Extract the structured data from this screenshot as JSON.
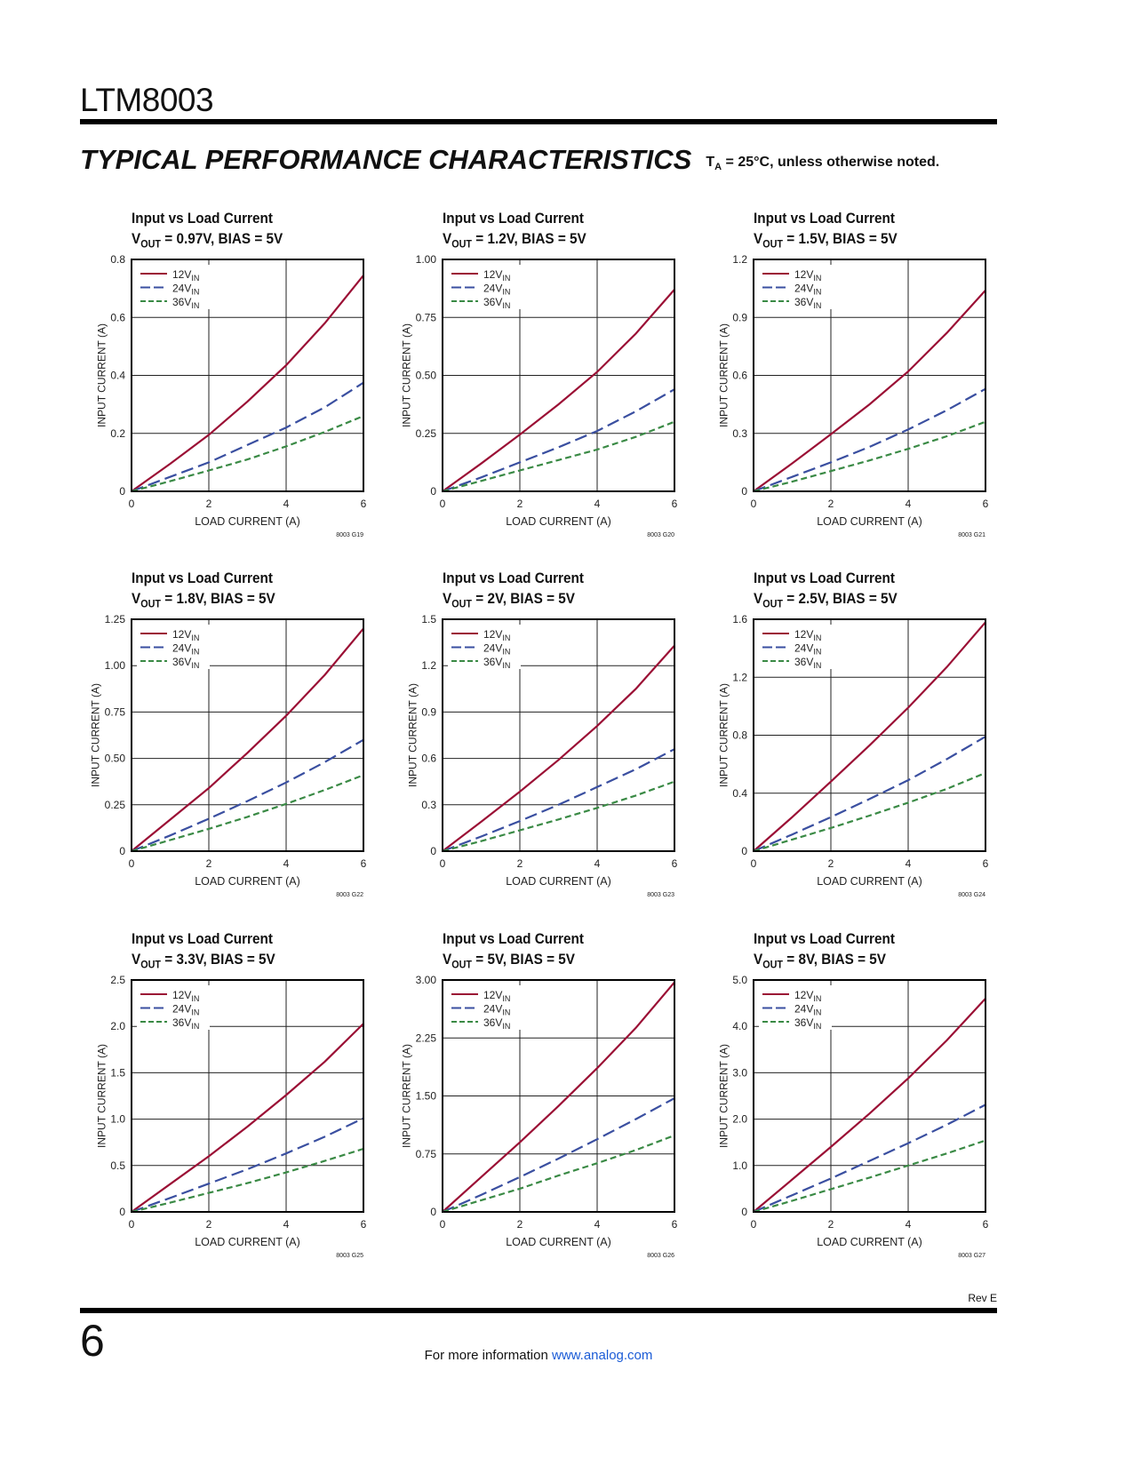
{
  "header": {
    "part_number": "LTM8003",
    "section_title": "TYPICAL PERFORMANCE CHARACTERISTICS",
    "conditions_prefix": "T",
    "conditions_sub": "A",
    "conditions_text": " = 25°C, unless otherwise noted."
  },
  "footer": {
    "page_number": "6",
    "revision": "Rev E",
    "info_text": "For more information ",
    "link_text": "www.analog.com"
  },
  "colors": {
    "12VIN": "#9b1035",
    "24VIN": "#3a4fa0",
    "36VIN": "#3a8a45"
  },
  "chart_data": [
    {
      "type": "line",
      "title": "Input vs Load Current",
      "subtitle_pre": "V",
      "subtitle_sub": "OUT",
      "subtitle_post": " = 0.97V, BIAS = 5V",
      "xlabel": "LOAD CURRENT (A)",
      "ylabel": "INPUT CURRENT (A)",
      "code": "8003 G19",
      "xlim": [
        0,
        6
      ],
      "ylim": [
        0,
        0.8
      ],
      "xticks": [
        "0",
        "2",
        "4",
        "6"
      ],
      "yticks": [
        "0",
        "0.2",
        "0.4",
        "0.6",
        "0.8"
      ],
      "grid": true,
      "legend": "top-left",
      "x": [
        0,
        1,
        2,
        3,
        4,
        5,
        6
      ],
      "series": [
        {
          "name": "12V",
          "name_sub": "IN",
          "values": [
            0,
            0.095,
            0.195,
            0.31,
            0.435,
            0.58,
            0.745
          ]
        },
        {
          "name": "24V",
          "name_sub": "IN",
          "values": [
            0,
            0.05,
            0.1,
            0.16,
            0.22,
            0.29,
            0.375
          ]
        },
        {
          "name": "36V",
          "name_sub": "IN",
          "values": [
            0,
            0.035,
            0.072,
            0.11,
            0.155,
            0.205,
            0.26
          ]
        }
      ]
    },
    {
      "type": "line",
      "title": "Input vs Load Current",
      "subtitle_pre": "V",
      "subtitle_sub": "OUT",
      "subtitle_post": " = 1.2V, BIAS = 5V",
      "xlabel": "LOAD CURRENT (A)",
      "ylabel": "INPUT CURRENT (A)",
      "code": "8003 G20",
      "xlim": [
        0,
        6
      ],
      "ylim": [
        0,
        1.0
      ],
      "xticks": [
        "0",
        "2",
        "4",
        "6"
      ],
      "yticks": [
        "0",
        "0.25",
        "0.50",
        "0.75",
        "1.00"
      ],
      "grid": true,
      "legend": "top-left",
      "x": [
        0,
        1,
        2,
        3,
        4,
        5,
        6
      ],
      "series": [
        {
          "name": "12V",
          "name_sub": "IN",
          "values": [
            0,
            0.12,
            0.245,
            0.375,
            0.515,
            0.68,
            0.87
          ]
        },
        {
          "name": "24V",
          "name_sub": "IN",
          "values": [
            0,
            0.06,
            0.125,
            0.19,
            0.26,
            0.345,
            0.44
          ]
        },
        {
          "name": "36V",
          "name_sub": "IN",
          "values": [
            0,
            0.045,
            0.09,
            0.135,
            0.18,
            0.235,
            0.3
          ]
        }
      ]
    },
    {
      "type": "line",
      "title": "Input vs Load Current",
      "subtitle_pre": "V",
      "subtitle_sub": "OUT",
      "subtitle_post": " = 1.5V, BIAS = 5V",
      "xlabel": "LOAD CURRENT (A)",
      "ylabel": "INPUT CURRENT (A)",
      "code": "8003 G21",
      "xlim": [
        0,
        6
      ],
      "ylim": [
        0,
        1.2
      ],
      "xticks": [
        "0",
        "2",
        "4",
        "6"
      ],
      "yticks": [
        "0",
        "0.3",
        "0.6",
        "0.9",
        "1.2"
      ],
      "grid": true,
      "legend": "top-left",
      "x": [
        0,
        1,
        2,
        3,
        4,
        5,
        6
      ],
      "series": [
        {
          "name": "12V",
          "name_sub": "IN",
          "values": [
            0,
            0.145,
            0.295,
            0.45,
            0.62,
            0.82,
            1.04
          ]
        },
        {
          "name": "24V",
          "name_sub": "IN",
          "values": [
            0,
            0.075,
            0.15,
            0.23,
            0.32,
            0.42,
            0.53
          ]
        },
        {
          "name": "36V",
          "name_sub": "IN",
          "values": [
            0,
            0.05,
            0.105,
            0.16,
            0.22,
            0.285,
            0.36
          ]
        }
      ]
    },
    {
      "type": "line",
      "title": "Input vs Load Current",
      "subtitle_pre": "V",
      "subtitle_sub": "OUT",
      "subtitle_post": " = 1.8V, BIAS = 5V",
      "xlabel": "LOAD CURRENT (A)",
      "ylabel": "INPUT CURRENT (A)",
      "code": "8003 G22",
      "xlim": [
        0,
        6
      ],
      "ylim": [
        0,
        1.25
      ],
      "xticks": [
        "0",
        "2",
        "4",
        "6"
      ],
      "yticks": [
        "0",
        "0.25",
        "0.50",
        "0.75",
        "1.00",
        "1.25"
      ],
      "grid": true,
      "legend": "top-left",
      "x": [
        0,
        1,
        2,
        3,
        4,
        5,
        6
      ],
      "series": [
        {
          "name": "12V",
          "name_sub": "IN",
          "values": [
            0,
            0.17,
            0.34,
            0.53,
            0.73,
            0.95,
            1.2
          ]
        },
        {
          "name": "24V",
          "name_sub": "IN",
          "values": [
            0,
            0.085,
            0.175,
            0.27,
            0.37,
            0.48,
            0.6
          ]
        },
        {
          "name": "36V",
          "name_sub": "IN",
          "values": [
            0,
            0.06,
            0.12,
            0.185,
            0.255,
            0.33,
            0.41
          ]
        }
      ]
    },
    {
      "type": "line",
      "title": "Input vs Load Current",
      "subtitle_pre": "V",
      "subtitle_sub": "OUT",
      "subtitle_post": " = 2V, BIAS = 5V",
      "xlabel": "LOAD CURRENT (A)",
      "ylabel": "INPUT CURRENT (A)",
      "code": "8003 G23",
      "xlim": [
        0,
        6
      ],
      "ylim": [
        0,
        1.5
      ],
      "xticks": [
        "0",
        "2",
        "4",
        "6"
      ],
      "yticks": [
        "0",
        "0.3",
        "0.6",
        "0.9",
        "1.2",
        "1.5"
      ],
      "grid": true,
      "legend": "top-left",
      "x": [
        0,
        1,
        2,
        3,
        4,
        5,
        6
      ],
      "series": [
        {
          "name": "12V",
          "name_sub": "IN",
          "values": [
            0,
            0.19,
            0.385,
            0.59,
            0.81,
            1.05,
            1.33
          ]
        },
        {
          "name": "24V",
          "name_sub": "IN",
          "values": [
            0,
            0.095,
            0.195,
            0.3,
            0.415,
            0.53,
            0.66
          ]
        },
        {
          "name": "36V",
          "name_sub": "IN",
          "values": [
            0,
            0.065,
            0.135,
            0.205,
            0.28,
            0.36,
            0.45
          ]
        }
      ]
    },
    {
      "type": "line",
      "title": "Input vs Load Current",
      "subtitle_pre": "V",
      "subtitle_sub": "OUT",
      "subtitle_post": " = 2.5V, BIAS = 5V",
      "xlabel": "LOAD CURRENT (A)",
      "ylabel": "INPUT CURRENT (A)",
      "code": "8003 G24",
      "xlim": [
        0,
        6
      ],
      "ylim": [
        0,
        1.6
      ],
      "xticks": [
        "0",
        "2",
        "4",
        "6"
      ],
      "yticks": [
        "0",
        "0.4",
        "0.8",
        "1.2",
        "1.6"
      ],
      "grid": true,
      "legend": "top-left",
      "x": [
        0,
        1,
        2,
        3,
        4,
        5,
        6
      ],
      "series": [
        {
          "name": "12V",
          "name_sub": "IN",
          "values": [
            0,
            0.235,
            0.48,
            0.73,
            0.99,
            1.27,
            1.58
          ]
        },
        {
          "name": "24V",
          "name_sub": "IN",
          "values": [
            0,
            0.115,
            0.235,
            0.36,
            0.49,
            0.635,
            0.79
          ]
        },
        {
          "name": "36V",
          "name_sub": "IN",
          "values": [
            0,
            0.08,
            0.16,
            0.245,
            0.335,
            0.43,
            0.54
          ]
        }
      ]
    },
    {
      "type": "line",
      "title": "Input vs Load Current",
      "subtitle_pre": "V",
      "subtitle_sub": "OUT",
      "subtitle_post": " = 3.3V, BIAS = 5V",
      "xlabel": "LOAD CURRENT (A)",
      "ylabel": "INPUT CURRENT (A)",
      "code": "8003 G25",
      "xlim": [
        0,
        6
      ],
      "ylim": [
        0,
        2.5
      ],
      "xticks": [
        "0",
        "2",
        "4",
        "6"
      ],
      "yticks": [
        "0",
        "0.5",
        "1.0",
        "1.5",
        "2.0",
        "2.5"
      ],
      "grid": true,
      "legend": "top-left",
      "x": [
        0,
        1,
        2,
        3,
        4,
        5,
        6
      ],
      "series": [
        {
          "name": "12V",
          "name_sub": "IN",
          "values": [
            0,
            0.3,
            0.6,
            0.92,
            1.26,
            1.62,
            2.03
          ]
        },
        {
          "name": "24V",
          "name_sub": "IN",
          "values": [
            0,
            0.15,
            0.305,
            0.46,
            0.63,
            0.81,
            1.01
          ]
        },
        {
          "name": "36V",
          "name_sub": "IN",
          "values": [
            0,
            0.1,
            0.205,
            0.31,
            0.425,
            0.55,
            0.68
          ]
        }
      ]
    },
    {
      "type": "line",
      "title": "Input vs Load Current",
      "subtitle_pre": "V",
      "subtitle_sub": "OUT",
      "subtitle_post": " = 5V, BIAS = 5V",
      "xlabel": "LOAD CURRENT (A)",
      "ylabel": "INPUT CURRENT (A)",
      "code": "8003 G26",
      "xlim": [
        0,
        6
      ],
      "ylim": [
        0,
        3.0
      ],
      "xticks": [
        "0",
        "2",
        "4",
        "6"
      ],
      "yticks": [
        "0",
        "0.75",
        "1.50",
        "2.25",
        "3.00"
      ],
      "grid": true,
      "legend": "top-left",
      "x": [
        0,
        1,
        2,
        3,
        4,
        5,
        6
      ],
      "series": [
        {
          "name": "12V",
          "name_sub": "IN",
          "values": [
            0,
            0.45,
            0.9,
            1.37,
            1.86,
            2.38,
            2.97
          ]
        },
        {
          "name": "24V",
          "name_sub": "IN",
          "values": [
            0,
            0.22,
            0.45,
            0.69,
            0.94,
            1.2,
            1.47
          ]
        },
        {
          "name": "36V",
          "name_sub": "IN",
          "values": [
            0,
            0.15,
            0.3,
            0.47,
            0.63,
            0.8,
            0.99
          ]
        }
      ]
    },
    {
      "type": "line",
      "title": "Input vs Load Current",
      "subtitle_pre": "V",
      "subtitle_sub": "OUT",
      "subtitle_post": " = 8V, BIAS = 5V",
      "xlabel": "LOAD CURRENT (A)",
      "ylabel": "INPUT CURRENT (A)",
      "code": "8003 G27",
      "xlim": [
        0,
        6
      ],
      "ylim": [
        0,
        5.0
      ],
      "xticks": [
        "0",
        "2",
        "4",
        "6"
      ],
      "yticks": [
        "0",
        "1.0",
        "2.0",
        "3.0",
        "4.0",
        "5.0"
      ],
      "grid": true,
      "legend": "top-left",
      "x": [
        0,
        1,
        2,
        3,
        4,
        5,
        6
      ],
      "series": [
        {
          "name": "12V",
          "name_sub": "IN",
          "values": [
            0,
            0.7,
            1.4,
            2.12,
            2.88,
            3.7,
            4.6
          ]
        },
        {
          "name": "24V",
          "name_sub": "IN",
          "values": [
            0,
            0.36,
            0.72,
            1.1,
            1.48,
            1.88,
            2.31
          ]
        },
        {
          "name": "36V",
          "name_sub": "IN",
          "values": [
            0,
            0.24,
            0.49,
            0.74,
            1.0,
            1.26,
            1.54
          ]
        }
      ]
    }
  ]
}
